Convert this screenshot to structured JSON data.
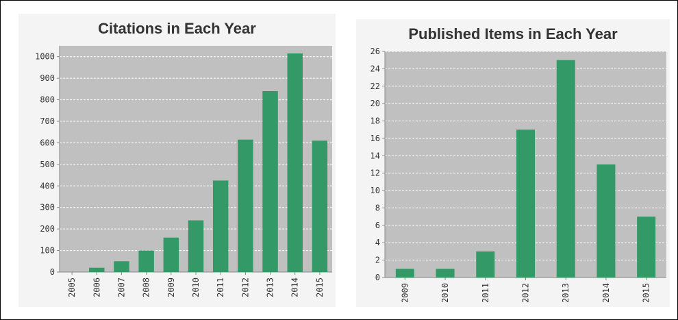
{
  "chart_data": [
    {
      "type": "bar",
      "title": "Citations in Each Year",
      "categories": [
        "2005",
        "2006",
        "2007",
        "2008",
        "2009",
        "2010",
        "2011",
        "2012",
        "2013",
        "2014",
        "2015"
      ],
      "values": [
        0,
        20,
        50,
        100,
        160,
        240,
        425,
        615,
        840,
        1015,
        610
      ],
      "ylim": [
        0,
        1050
      ],
      "yticks": [
        0,
        100,
        200,
        300,
        400,
        500,
        600,
        700,
        800,
        900,
        1000
      ],
      "ytick_labels": [
        "0",
        "100",
        "200",
        "300",
        "400",
        "500",
        "600",
        "700",
        "800",
        "900",
        "1000"
      ],
      "grid": true,
      "bar_color": "#339966",
      "plot_bg": "#c0c0c0"
    },
    {
      "type": "bar",
      "title": "Published Items in Each Year",
      "categories": [
        "2009",
        "2010",
        "2011",
        "2012",
        "2013",
        "2014",
        "2015"
      ],
      "values": [
        1,
        1,
        3,
        17,
        25,
        13,
        7
      ],
      "ylim": [
        0,
        26
      ],
      "yticks": [
        0,
        2,
        4,
        6,
        8,
        10,
        12,
        14,
        16,
        18,
        20,
        22,
        24,
        26
      ],
      "ytick_labels": [
        "0",
        "2",
        "4",
        "6",
        "8",
        "10",
        "12",
        "14",
        "16",
        "18",
        "20",
        "22",
        "24",
        "26"
      ],
      "grid": true,
      "bar_color": "#339966",
      "plot_bg": "#c0c0c0"
    }
  ]
}
